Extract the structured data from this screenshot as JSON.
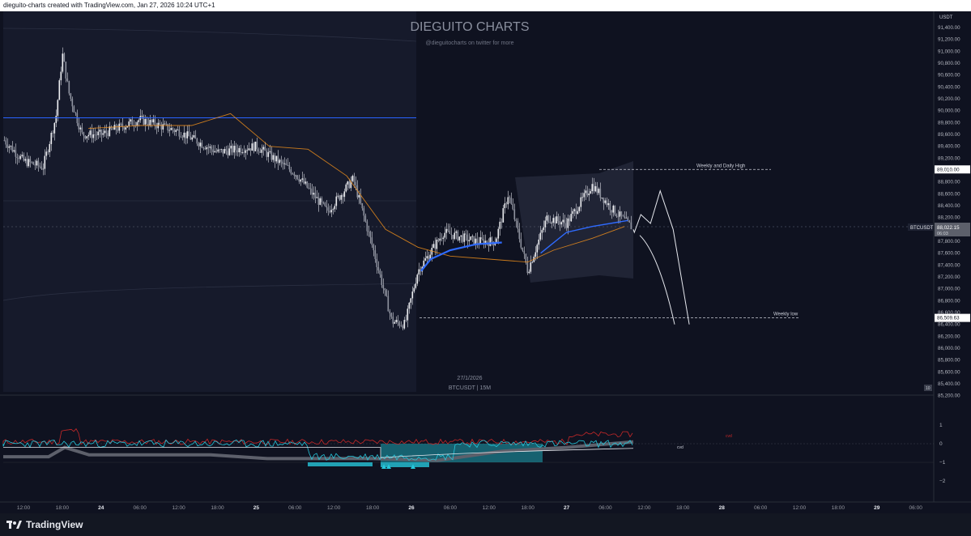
{
  "header": {
    "caption": "dieguito-charts created with TradingView.com, Jan 27, 2026 10:24 UTC+1"
  },
  "watermark": {
    "title": "DIEGUITO CHARTS",
    "subtitle": "@dieguitocharts on twitter for more"
  },
  "center_label": {
    "date": "27/1/2026",
    "symbol_tf": "BTCUSDT | 15M"
  },
  "price_axis": {
    "currency": "USDT",
    "ticks": [
      "91,400.00",
      "91,200.00",
      "91,000.00",
      "90,800.00",
      "90,600.00",
      "90,400.00",
      "90,200.00",
      "90,000.00",
      "89,800.00",
      "89,600.00",
      "89,400.00",
      "89,200.00",
      "89,000.00",
      "88,800.00",
      "88,600.00",
      "88,400.00",
      "88,200.00",
      "88,000.00",
      "87,800.00",
      "87,600.00",
      "87,400.00",
      "87,200.00",
      "87,000.00",
      "86,800.00",
      "86,600.00",
      "86,400.00",
      "86,200.00",
      "86,000.00",
      "85,800.00",
      "85,600.00",
      "85,400.00",
      "85,200.00"
    ],
    "badge_high": "89,010.00",
    "badge_symbol": "BTCUSDT",
    "badge_price": "88,022.15",
    "badge_countdown": "06:03",
    "badge_low": "86,509.63",
    "scale_button": "10"
  },
  "osc_axis": {
    "ticks": [
      "1",
      "0",
      "−1",
      "−2"
    ]
  },
  "time_axis": {
    "ticks": [
      "12:00",
      "18:00",
      "24",
      "06:00",
      "12:00",
      "18:00",
      "25",
      "06:00",
      "12:00",
      "18:00",
      "26",
      "06:00",
      "12:00",
      "18:00",
      "27",
      "06:00",
      "12:00",
      "18:00",
      "28",
      "06:00",
      "12:00",
      "18:00",
      "29",
      "06:00"
    ]
  },
  "annotations": {
    "weekly_high": "Weekly and Daily High",
    "weekly_low": "Weekly low"
  },
  "osc_labels": {
    "red": "cvd",
    "white": "cvd"
  },
  "footer": {
    "brand": "TradingView"
  },
  "colors": {
    "background": "#0f1220",
    "candle": "#e4e6ea",
    "vwap": "#f7931a",
    "blue": "#2962ff",
    "cyan": "#26c6da",
    "red": "#e53935"
  },
  "chart_data": {
    "type": "candlestick",
    "symbol": "BTCUSDT",
    "timeframe": "15M",
    "y_range": [
      85100,
      91500
    ],
    "close_path": [
      {
        "t": "Jan 23 09:00",
        "y": 89500
      },
      {
        "t": "Jan 23 12:00",
        "y": 89150
      },
      {
        "t": "Jan 23 15:00",
        "y": 89050
      },
      {
        "t": "Jan 23 17:00",
        "y": 89900
      },
      {
        "t": "Jan 23 18:00",
        "y": 90950
      },
      {
        "t": "Jan 23 19:00",
        "y": 90300
      },
      {
        "t": "Jan 23 21:00",
        "y": 89600
      },
      {
        "t": "Jan 24 00:00",
        "y": 89600
      },
      {
        "t": "Jan 24 06:00",
        "y": 89850
      },
      {
        "t": "Jan 24 12:00",
        "y": 89650
      },
      {
        "t": "Jan 24 18:00",
        "y": 89300
      },
      {
        "t": "Jan 25 00:00",
        "y": 89400
      },
      {
        "t": "Jan 25 06:00",
        "y": 88950
      },
      {
        "t": "Jan 25 11:00",
        "y": 88300
      },
      {
        "t": "Jan 25 15:00",
        "y": 88850
      },
      {
        "t": "Jan 25 18:00",
        "y": 87700
      },
      {
        "t": "Jan 25 21:00",
        "y": 86450
      },
      {
        "t": "Jan 25 23:00",
        "y": 86400
      },
      {
        "t": "Jan 26 01:00",
        "y": 87300
      },
      {
        "t": "Jan 26 05:00",
        "y": 87950
      },
      {
        "t": "Jan 26 10:00",
        "y": 87800
      },
      {
        "t": "Jan 26 13:00",
        "y": 87800
      },
      {
        "t": "Jan 26 15:00",
        "y": 88600
      },
      {
        "t": "Jan 26 18:00",
        "y": 87300
      },
      {
        "t": "Jan 26 21:00",
        "y": 88200
      },
      {
        "t": "Jan 27 00:00",
        "y": 88100
      },
      {
        "t": "Jan 27 04:00",
        "y": 88750
      },
      {
        "t": "Jan 27 07:00",
        "y": 88350
      },
      {
        "t": "Jan 27 10:15",
        "y": 88022.15
      }
    ],
    "levels": {
      "weekly_and_daily_high": 89010.0,
      "weekly_low": 86509.63,
      "last_price": 88022.15
    },
    "projection_path": [
      {
        "t": "Jan 27 10:30",
        "y": 87950
      },
      {
        "t": "Jan 27 11:30",
        "y": 88250
      },
      {
        "t": "Jan 27 13:00",
        "y": 88100
      },
      {
        "t": "Jan 27 14:30",
        "y": 88650
      },
      {
        "t": "Jan 27 16:30",
        "y": 88000
      },
      {
        "t": "Jan 27 19:00",
        "y": 86400
      }
    ],
    "series": [
      {
        "kind": "blue_line",
        "y": 89880
      },
      {
        "kind": "blue_curve",
        "points": [
          [
            87250
          ],
          [
            87500
          ],
          [
            87700
          ],
          [
            87750
          ],
          [
            87850
          ],
          [
            88000
          ],
          [
            88100
          ],
          [
            88150
          ]
        ]
      }
    ],
    "oscillator": {
      "y_range": [
        -2.2,
        1.3
      ],
      "zero": 0
    }
  }
}
